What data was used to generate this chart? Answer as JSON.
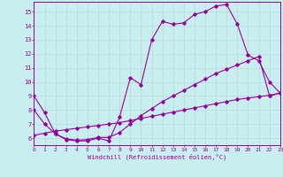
{
  "bg_color": "#c8eef0",
  "line_color": "#990099",
  "xlim": [
    0,
    23
  ],
  "ylim": [
    5.5,
    15.7
  ],
  "yticks": [
    6,
    7,
    8,
    9,
    10,
    11,
    12,
    13,
    14,
    15
  ],
  "xticks": [
    0,
    1,
    2,
    3,
    4,
    5,
    6,
    7,
    8,
    9,
    10,
    11,
    12,
    13,
    14,
    15,
    16,
    17,
    18,
    19,
    20,
    21,
    22,
    23
  ],
  "xlabel": "Windchill (Refroidissement éolien,°C)",
  "line1_x": [
    0,
    1,
    2,
    3,
    4,
    5,
    6,
    7,
    8,
    9,
    10,
    11,
    12,
    13,
    14,
    15,
    16,
    17,
    18,
    19,
    20,
    21,
    22,
    23
  ],
  "line1_y": [
    9.0,
    7.8,
    6.3,
    5.9,
    5.8,
    5.8,
    6.0,
    5.8,
    7.5,
    10.3,
    9.8,
    13.0,
    14.3,
    14.1,
    14.2,
    14.8,
    15.0,
    15.4,
    15.5,
    14.1,
    11.9,
    11.5,
    10.0,
    9.2
  ],
  "line2_x": [
    0,
    1,
    2,
    3,
    4,
    5,
    6,
    7,
    8,
    9,
    10,
    11,
    12,
    13,
    14,
    15,
    16,
    17,
    18,
    19,
    20,
    21,
    22,
    23
  ],
  "line2_y": [
    8.0,
    7.0,
    6.3,
    5.95,
    5.85,
    5.9,
    6.05,
    6.05,
    6.4,
    7.0,
    7.6,
    8.1,
    8.6,
    9.0,
    9.4,
    9.8,
    10.2,
    10.6,
    10.9,
    11.2,
    11.5,
    11.8,
    9.0,
    9.2
  ],
  "line3_x": [
    0,
    1,
    2,
    3,
    4,
    5,
    6,
    7,
    8,
    9,
    10,
    11,
    12,
    13,
    14,
    15,
    16,
    17,
    18,
    19,
    20,
    21,
    22,
    23
  ],
  "line3_y": [
    6.2,
    6.35,
    6.5,
    6.6,
    6.7,
    6.8,
    6.9,
    7.0,
    7.1,
    7.25,
    7.4,
    7.55,
    7.7,
    7.85,
    8.0,
    8.15,
    8.3,
    8.45,
    8.6,
    8.75,
    8.85,
    8.95,
    9.05,
    9.2
  ]
}
